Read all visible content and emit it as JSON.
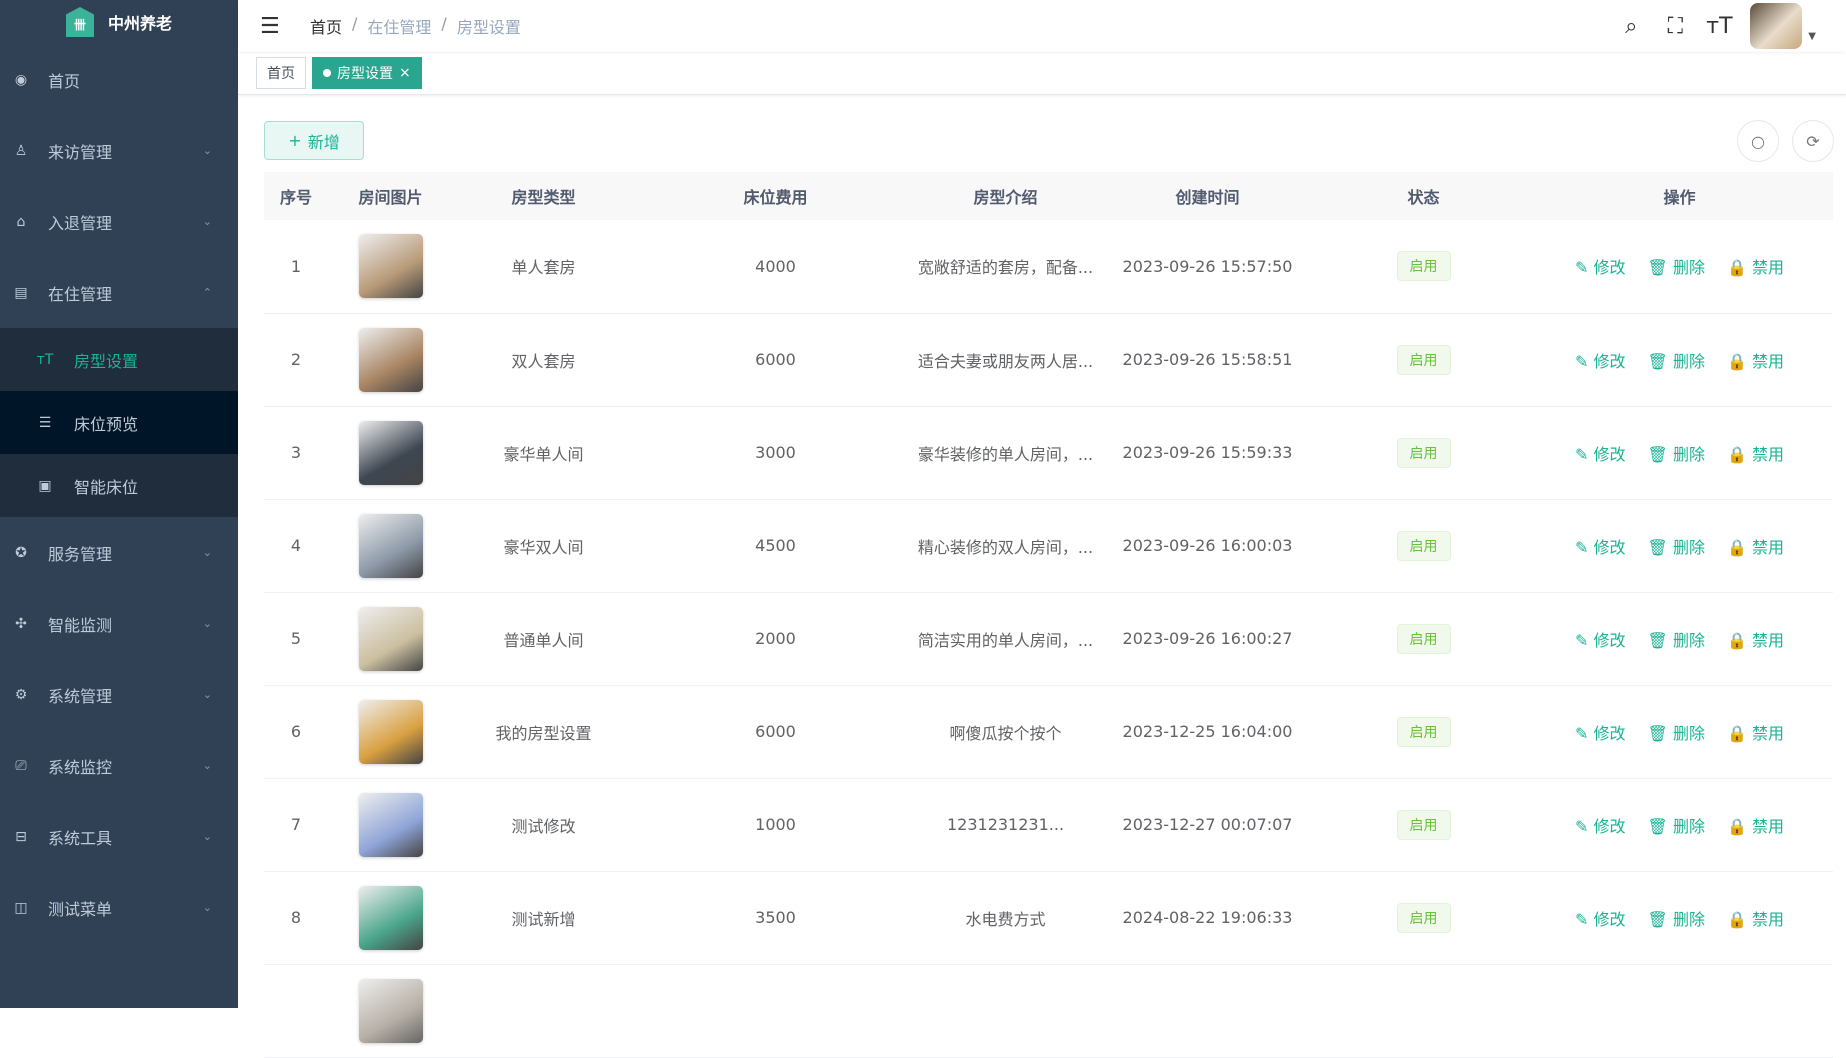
{
  "app": {
    "name": "中州养老"
  },
  "sidebar": {
    "items": [
      {
        "label": "首页",
        "icon": "dashboard-icon",
        "glyph": "◉"
      },
      {
        "label": "来访管理",
        "icon": "visitor-icon",
        "glyph": "♙",
        "chev": "⌄"
      },
      {
        "label": "入退管理",
        "icon": "checkin-icon",
        "glyph": "⌂",
        "chev": "⌄"
      },
      {
        "label": "在住管理",
        "icon": "residence-icon",
        "glyph": "▤",
        "chev": "⌃"
      }
    ],
    "sub_items": [
      {
        "label": "房型设置",
        "icon": "font-size-icon",
        "glyph": "ᴛT"
      },
      {
        "label": "床位预览",
        "icon": "list-icon",
        "glyph": "☰"
      },
      {
        "label": "智能床位",
        "icon": "image-icon",
        "glyph": "▣"
      }
    ],
    "more_items": [
      {
        "label": "服务管理",
        "icon": "service-icon",
        "glyph": "✪",
        "chev": "⌄"
      },
      {
        "label": "智能监测",
        "icon": "monitor-icon",
        "glyph": "✣",
        "chev": "⌄"
      },
      {
        "label": "系统管理",
        "icon": "gear-icon",
        "glyph": "⚙",
        "chev": "⌄"
      },
      {
        "label": "系统监控",
        "icon": "screen-icon",
        "glyph": "⎚",
        "chev": "⌄"
      },
      {
        "label": "系统工具",
        "icon": "toolbox-icon",
        "glyph": "⊟",
        "chev": "⌄"
      },
      {
        "label": "测试菜单",
        "icon": "book-icon",
        "glyph": "◫",
        "chev": "⌄"
      }
    ]
  },
  "header": {
    "breadcrumb": [
      "首页",
      "在住管理",
      "房型设置"
    ],
    "sep": "/"
  },
  "tags": {
    "home": "首页",
    "active": "房型设置",
    "close": "×"
  },
  "toolbar": {
    "add": "新增",
    "add_icon": "+"
  },
  "table": {
    "headers": [
      "序号",
      "房间图片",
      "房型类型",
      "床位费用",
      "房型介绍",
      "创建时间",
      "状态",
      "操作"
    ],
    "actions": {
      "edit": "修改",
      "delete": "删除",
      "disable": "禁用"
    },
    "rows": [
      {
        "no": "1",
        "type": "单人套房",
        "fee": "4000",
        "intro": "宽敞舒适的套房，配备...",
        "created": "2023-09-26 15:57:50",
        "status": "启用",
        "img": "#b89a78"
      },
      {
        "no": "2",
        "type": "双人套房",
        "fee": "6000",
        "intro": "适合夫妻或朋友两人居...",
        "created": "2023-09-26 15:58:51",
        "status": "启用",
        "img": "#a88462"
      },
      {
        "no": "3",
        "type": "豪华单人间",
        "fee": "3000",
        "intro": "豪华装修的单人房间，...",
        "created": "2023-09-26 15:59:33",
        "status": "启用",
        "img": "#3d4652"
      },
      {
        "no": "4",
        "type": "豪华双人间",
        "fee": "4500",
        "intro": "精心装修的双人房间，...",
        "created": "2023-09-26 16:00:03",
        "status": "启用",
        "img": "#8c99a8"
      },
      {
        "no": "5",
        "type": "普通单人间",
        "fee": "2000",
        "intro": "简洁实用的单人房间，...",
        "created": "2023-09-26 16:00:27",
        "status": "启用",
        "img": "#cbbf9f"
      },
      {
        "no": "6",
        "type": "我的房型设置",
        "fee": "6000",
        "intro": "啊傻瓜按个按个",
        "created": "2023-12-25 16:04:00",
        "status": "启用",
        "img": "#d9a040"
      },
      {
        "no": "7",
        "type": "测试修改",
        "fee": "1000",
        "intro": "1231231231...",
        "created": "2023-12-27 00:07:07",
        "status": "启用",
        "img": "#8fa5d8"
      },
      {
        "no": "8",
        "type": "测试新增",
        "fee": "3500",
        "intro": "水电费方式",
        "created": "2024-08-22 19:06:33",
        "status": "启用",
        "img": "#4aa58a"
      }
    ]
  }
}
